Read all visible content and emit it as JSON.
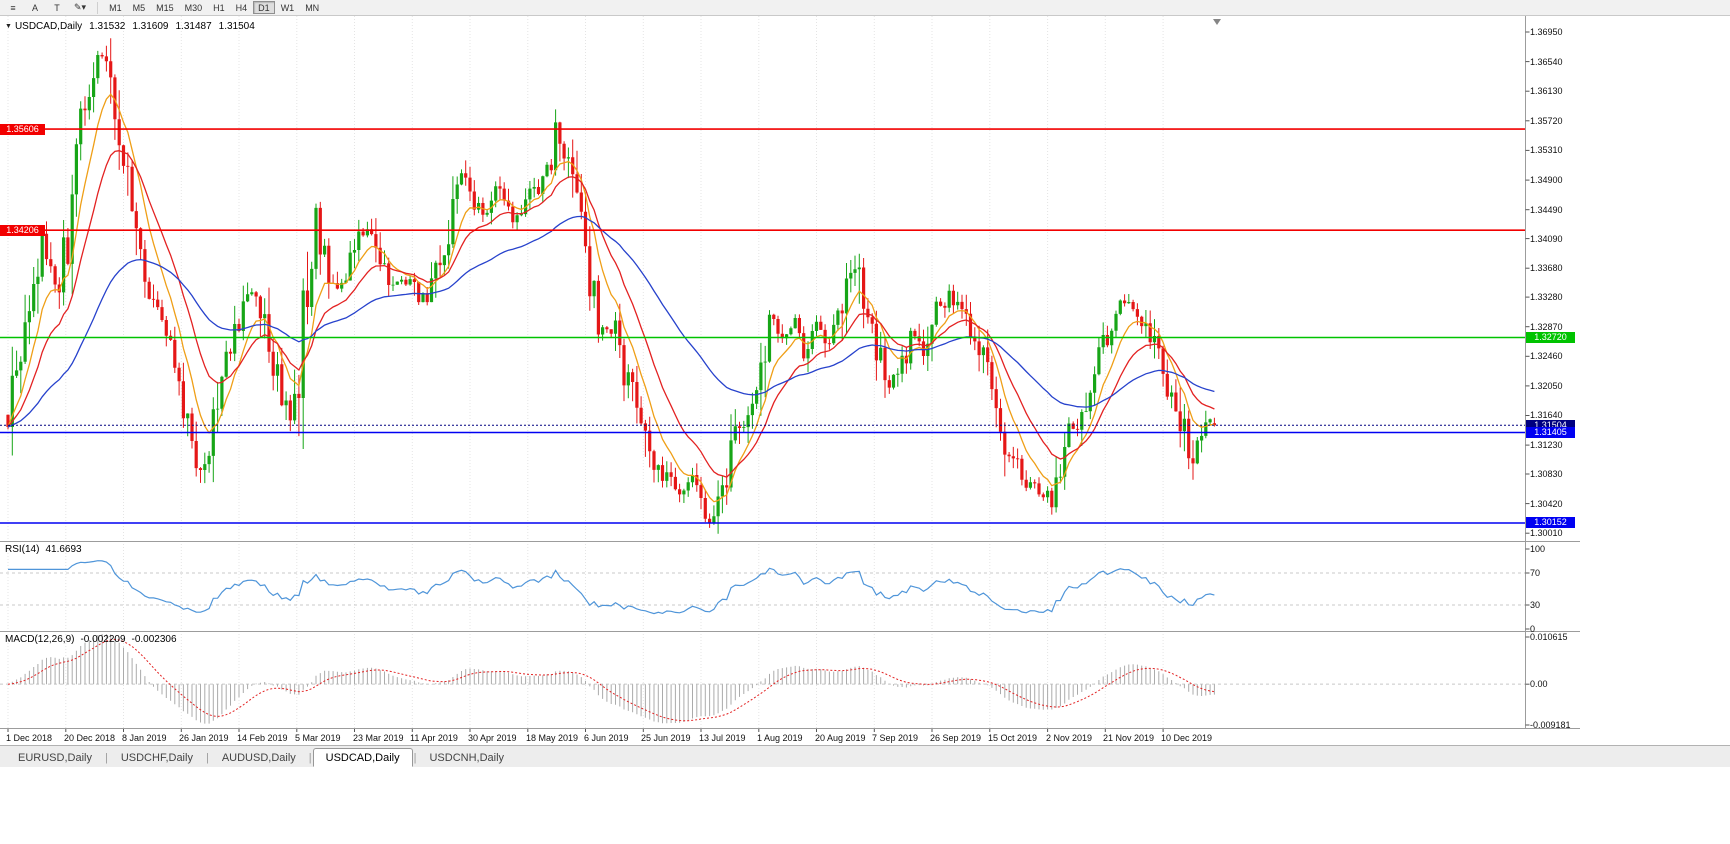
{
  "toolbar": {
    "buttons": [
      {
        "glyph": "≡"
      },
      {
        "label": "A"
      },
      {
        "label": "T"
      },
      {
        "glyph": "✎",
        "dropdown": "▾"
      }
    ],
    "timeframes": [
      "M1",
      "M5",
      "M15",
      "M30",
      "H1",
      "H4",
      "D1",
      "W1",
      "MN"
    ],
    "active_timeframe": "D1"
  },
  "chart": {
    "info": {
      "collapse_icon": "▼",
      "symbol": "USDCAD,Daily",
      "open": "1.31532",
      "high": "1.31609",
      "low": "1.31487",
      "close": "1.31504"
    },
    "price_axis_labels": [
      "1.36950",
      "1.36540",
      "1.36130",
      "1.35720",
      "1.35310",
      "1.34900",
      "1.34490",
      "1.34090",
      "1.33680",
      "1.33280",
      "1.32870",
      "1.32460",
      "1.32050",
      "1.31640",
      "1.31230",
      "1.30830",
      "1.30420",
      "1.30010"
    ],
    "date_axis_labels": [
      "1 Dec 2018",
      "20 Dec 2018",
      "8 Jan 2019",
      "26 Jan 2019",
      "14 Feb 2019",
      "5 Mar 2019",
      "23 Mar 2019",
      "11 Apr 2019",
      "30 Apr 2019",
      "18 May 2019",
      "6 Jun 2019",
      "25 Jun 2019",
      "13 Jul 2019",
      "1 Aug 2019",
      "20 Aug 2019",
      "7 Sep 2019",
      "26 Sep 2019",
      "15 Oct 2019",
      "2 Nov 2019",
      "21 Nov 2019",
      "10 Dec 2019"
    ],
    "hlines": [
      {
        "price": 1.35606,
        "label": "1.35606",
        "color": "#f20000",
        "side": "left"
      },
      {
        "price": 1.34206,
        "label": "1.34206",
        "color": "#f20000",
        "side": "left"
      },
      {
        "price": 1.3272,
        "label": "1.32720",
        "color": "#00c300",
        "side": "right"
      },
      {
        "price": 1.31405,
        "label": "1.31405",
        "color": "#0000f2",
        "side": "right"
      },
      {
        "price": 1.30152,
        "label": "1.30152",
        "color": "#0000f2",
        "side": "right"
      }
    ],
    "current_price": {
      "value": 1.31504,
      "label": "1.31504",
      "color": "#000080"
    },
    "last_candle": {
      "open": 1.31532,
      "high": 1.31609,
      "low": 1.31487,
      "close": 1.31504
    },
    "colors": {
      "bull": "#17a517",
      "bear": "#e51717",
      "grid": "#e4e4e4",
      "separator": "#9c9c9c"
    },
    "moving_averages": [
      {
        "period": 8,
        "color": "#ef9f17"
      },
      {
        "period": 17,
        "color": "#e32222"
      },
      {
        "period": 52,
        "color": "#2742cc"
      }
    ],
    "price_path": {
      "anchors": [
        [
          0,
          1.3165
        ],
        [
          2,
          1.323
        ],
        [
          4,
          1.33
        ],
        [
          6,
          1.3345
        ],
        [
          8,
          1.341
        ],
        [
          10,
          1.336
        ],
        [
          12,
          1.333
        ],
        [
          14,
          1.342
        ],
        [
          16,
          1.355
        ],
        [
          18,
          1.36
        ],
        [
          20,
          1.3645
        ],
        [
          22,
          1.366
        ],
        [
          24,
          1.363
        ],
        [
          26,
          1.356
        ],
        [
          28,
          1.348
        ],
        [
          30,
          1.342
        ],
        [
          32,
          1.337
        ],
        [
          34,
          1.331
        ],
        [
          36,
          1.329
        ],
        [
          38,
          1.328
        ],
        [
          40,
          1.322
        ],
        [
          42,
          1.316
        ],
        [
          44,
          1.311
        ],
        [
          46,
          1.309
        ],
        [
          48,
          1.315
        ],
        [
          50,
          1.321
        ],
        [
          52,
          1.326
        ],
        [
          54,
          1.33
        ],
        [
          56,
          1.332
        ],
        [
          58,
          1.333
        ],
        [
          60,
          1.329
        ],
        [
          62,
          1.324
        ],
        [
          64,
          1.318
        ],
        [
          66,
          1.316
        ],
        [
          68,
          1.322
        ],
        [
          70,
          1.336
        ],
        [
          72,
          1.344
        ],
        [
          74,
          1.339
        ],
        [
          76,
          1.335
        ],
        [
          78,
          1.334
        ],
        [
          80,
          1.338
        ],
        [
          82,
          1.341
        ],
        [
          84,
          1.343
        ],
        [
          86,
          1.34
        ],
        [
          88,
          1.336
        ],
        [
          90,
          1.334
        ],
        [
          92,
          1.3345
        ],
        [
          94,
          1.335
        ],
        [
          96,
          1.333
        ],
        [
          98,
          1.331
        ],
        [
          100,
          1.336
        ],
        [
          102,
          1.34
        ],
        [
          104,
          1.345
        ],
        [
          106,
          1.349
        ],
        [
          108,
          1.347
        ],
        [
          110,
          1.345
        ],
        [
          112,
          1.3445
        ],
        [
          114,
          1.3475
        ],
        [
          116,
          1.3455
        ],
        [
          118,
          1.344
        ],
        [
          120,
          1.3445
        ],
        [
          122,
          1.347
        ],
        [
          124,
          1.348
        ],
        [
          126,
          1.35
        ],
        [
          128,
          1.356
        ],
        [
          130,
          1.353
        ],
        [
          132,
          1.349
        ],
        [
          134,
          1.342
        ],
        [
          136,
          1.335
        ],
        [
          138,
          1.329
        ],
        [
          140,
          1.3285
        ],
        [
          142,
          1.328
        ],
        [
          144,
          1.323
        ],
        [
          146,
          1.319
        ],
        [
          148,
          1.316
        ],
        [
          150,
          1.311
        ],
        [
          152,
          1.309
        ],
        [
          154,
          1.3075
        ],
        [
          156,
          1.305
        ],
        [
          158,
          1.306
        ],
        [
          160,
          1.307
        ],
        [
          162,
          1.304
        ],
        [
          164,
          1.3025
        ],
        [
          166,
          1.305
        ],
        [
          168,
          1.308
        ],
        [
          170,
          1.313
        ],
        [
          172,
          1.316
        ],
        [
          174,
          1.319
        ],
        [
          176,
          1.322
        ],
        [
          178,
          1.331
        ],
        [
          180,
          1.327
        ],
        [
          182,
          1.328
        ],
        [
          184,
          1.329
        ],
        [
          186,
          1.325
        ],
        [
          188,
          1.327
        ],
        [
          190,
          1.329
        ],
        [
          192,
          1.327
        ],
        [
          194,
          1.33
        ],
        [
          196,
          1.336
        ],
        [
          198,
          1.338
        ],
        [
          200,
          1.331
        ],
        [
          202,
          1.328
        ],
        [
          204,
          1.324
        ],
        [
          206,
          1.321
        ],
        [
          208,
          1.323
        ],
        [
          210,
          1.325
        ],
        [
          212,
          1.328
        ],
        [
          214,
          1.326
        ],
        [
          216,
          1.33
        ],
        [
          218,
          1.332
        ],
        [
          220,
          1.333
        ],
        [
          222,
          1.332
        ],
        [
          224,
          1.33
        ],
        [
          226,
          1.327
        ],
        [
          228,
          1.324
        ],
        [
          230,
          1.32
        ],
        [
          232,
          1.316
        ],
        [
          234,
          1.311
        ],
        [
          236,
          1.309
        ],
        [
          238,
          1.307
        ],
        [
          240,
          1.306
        ],
        [
          242,
          1.3055
        ],
        [
          244,
          1.305
        ],
        [
          246,
          1.309
        ],
        [
          248,
          1.313
        ],
        [
          250,
          1.316
        ],
        [
          252,
          1.319
        ],
        [
          254,
          1.323
        ],
        [
          256,
          1.326
        ],
        [
          258,
          1.329
        ],
        [
          260,
          1.331
        ],
        [
          262,
          1.332
        ],
        [
          264,
          1.33
        ],
        [
          266,
          1.329
        ],
        [
          268,
          1.326
        ],
        [
          270,
          1.323
        ],
        [
          272,
          1.319
        ],
        [
          274,
          1.316
        ],
        [
          276,
          1.31
        ],
        [
          278,
          1.313
        ],
        [
          280,
          1.3155
        ],
        [
          282,
          1.31504
        ]
      ]
    }
  },
  "rsi": {
    "label": "RSI(14)",
    "value": "41.6693",
    "period": 14,
    "axis_labels": [
      "100",
      "70",
      "30",
      "0"
    ],
    "axis_values": [
      100,
      70,
      30,
      0
    ],
    "level_lines": [
      70,
      30
    ],
    "color": "#4f95d9"
  },
  "macd": {
    "label": "MACD(12,26,9)",
    "main_value": "-0.002209",
    "signal_value": "-0.002306",
    "params": [
      12,
      26,
      9
    ],
    "axis_labels": [
      "0.010615",
      "0.00",
      "-0.009181"
    ],
    "axis_values": [
      0.010615,
      0,
      -0.009181
    ],
    "histogram_color": "#ababab",
    "signal_color": "#e32222"
  },
  "tabs": {
    "items": [
      "EURUSD,Daily",
      "USDCHF,Daily",
      "AUDUSD,Daily",
      "USDCAD,Daily",
      "USDCNH,Daily"
    ],
    "active": "USDCAD,Daily",
    "separator": "|"
  }
}
